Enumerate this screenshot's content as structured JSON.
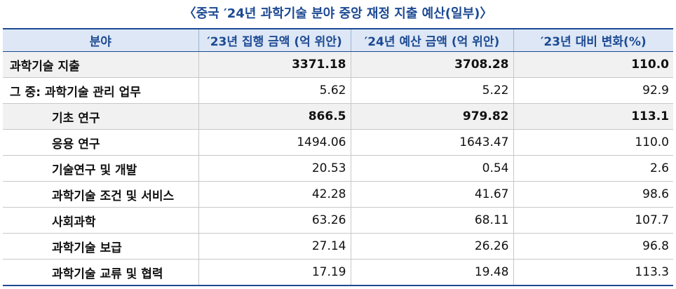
{
  "title": "〈중국 ′24년 과학기술 분야 중앙 재정 지출 예산(일부)〉",
  "table": {
    "header": [
      "분야",
      "′23년 집행 금액 (억 위안)",
      "′24년 예산 금액 (억 위안)",
      "′23년 대비 변화(%)"
    ],
    "rows": [
      [
        "과학기술 지출",
        "3371.18",
        "3708.28",
        "110.0"
      ],
      [
        "그 중: 과학기술 관리 업무",
        "5.62",
        "5.22",
        "92.9"
      ],
      [
        "기초 연구",
        "866.5",
        "979.82",
        "113.1"
      ],
      [
        "응용 연구",
        "1494.06",
        "1643.47",
        "110.0"
      ],
      [
        "기술연구 및 개발",
        "20.53",
        "0.54",
        "2.6"
      ],
      [
        "과학기술 조건 및 서비스",
        "42.28",
        "41.67",
        "98.6"
      ],
      [
        "사회과학",
        "63.26",
        "68.11",
        "107.7"
      ],
      [
        "과학기술 보급",
        "27.14",
        "26.26",
        "96.8"
      ],
      [
        "과학기술 교류 및 협력",
        "17.19",
        "19.48",
        "113.3"
      ]
    ]
  }
}
